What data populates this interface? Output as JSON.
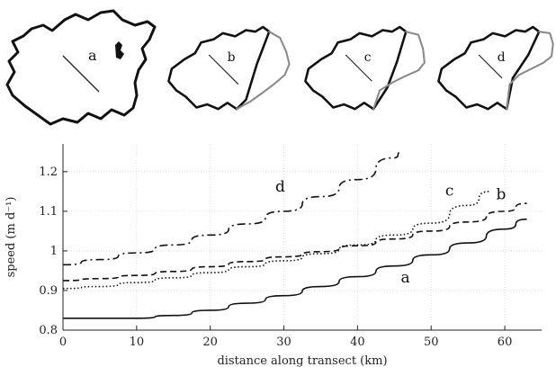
{
  "maps": [
    {
      "label": "a"
    },
    {
      "label": "b"
    },
    {
      "label": "c"
    },
    {
      "label": "d"
    }
  ],
  "chart_data": {
    "type": "line",
    "xlabel": "distance along transect (km)",
    "ylabel": "speed (m d⁻¹)",
    "xlim": [
      0,
      65
    ],
    "ylim": [
      0.8,
      1.27
    ],
    "xticks": [
      "0",
      "10",
      "20",
      "30",
      "40",
      "50",
      "60"
    ],
    "yticks": [
      "0.8",
      "0.9",
      "1",
      "1.1",
      "1.2"
    ],
    "grid": true,
    "series": [
      {
        "name": "a",
        "style": "solid",
        "x": [
          0,
          10,
          15,
          20,
          25,
          30,
          35,
          40,
          45,
          50,
          55,
          60,
          63
        ],
        "y": [
          0.83,
          0.83,
          0.837,
          0.85,
          0.868,
          0.887,
          0.91,
          0.935,
          0.962,
          0.99,
          1.02,
          1.055,
          1.08
        ]
      },
      {
        "name": "b",
        "style": "dashed",
        "x": [
          0,
          5,
          10,
          15,
          20,
          25,
          30,
          35,
          40,
          45,
          50,
          55,
          60,
          63
        ],
        "y": [
          0.925,
          0.93,
          0.938,
          0.948,
          0.96,
          0.973,
          0.985,
          0.998,
          1.013,
          1.03,
          1.05,
          1.073,
          1.1,
          1.12
        ]
      },
      {
        "name": "c",
        "style": "dotted",
        "x": [
          0,
          5,
          10,
          15,
          20,
          25,
          30,
          35,
          40,
          45,
          50,
          55,
          58
        ],
        "y": [
          0.905,
          0.91,
          0.92,
          0.932,
          0.945,
          0.96,
          0.975,
          0.993,
          1.015,
          1.04,
          1.07,
          1.115,
          1.15
        ]
      },
      {
        "name": "d",
        "style": "dashdot",
        "x": [
          0,
          5,
          10,
          15,
          20,
          25,
          30,
          35,
          40,
          45,
          46
        ],
        "y": [
          0.965,
          0.978,
          0.995,
          1.015,
          1.04,
          1.068,
          1.1,
          1.137,
          1.18,
          1.235,
          1.25
        ]
      }
    ],
    "curve_labels": [
      {
        "text": "a",
        "x": 46.5,
        "y": 0.92
      },
      {
        "text": "b",
        "x": 59.5,
        "y": 1.13
      },
      {
        "text": "c",
        "x": 52.5,
        "y": 1.14
      },
      {
        "text": "d",
        "x": 29.5,
        "y": 1.15
      }
    ]
  }
}
